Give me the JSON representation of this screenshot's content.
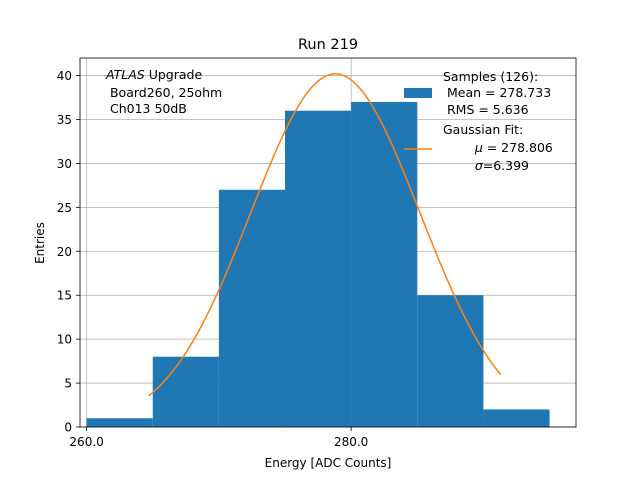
{
  "chart_data": {
    "type": "bar",
    "title": "Run 219",
    "xlabel": "Energy [ADC Counts]",
    "ylabel": "Entries",
    "xlim": [
      259.5,
      297.0
    ],
    "ylim": [
      0,
      42
    ],
    "grid": true,
    "x_ticks": [
      260.0,
      280.0
    ],
    "x_tick_labels": [
      "260.0",
      "280.0"
    ],
    "y_ticks": [
      0,
      5,
      10,
      15,
      20,
      25,
      30,
      35,
      40
    ],
    "y_tick_labels": [
      "0",
      "5",
      "10",
      "15",
      "20",
      "25",
      "30",
      "35",
      "40"
    ],
    "bins": [
      {
        "x0": 260.0,
        "x1": 265.0,
        "count": 1
      },
      {
        "x0": 265.0,
        "x1": 270.0,
        "count": 8
      },
      {
        "x0": 270.0,
        "x1": 275.0,
        "count": 27
      },
      {
        "x0": 275.0,
        "x1": 280.0,
        "count": 36
      },
      {
        "x0": 280.0,
        "x1": 285.0,
        "count": 37
      },
      {
        "x0": 285.0,
        "x1": 290.0,
        "count": 15
      },
      {
        "x0": 290.0,
        "x1": 295.0,
        "count": 2
      }
    ],
    "fit": {
      "name": "Gaussian",
      "mu": 278.806,
      "sigma": 6.399,
      "amplitude": 40.2,
      "x_range": [
        264.7,
        291.3
      ]
    },
    "annotation": {
      "italic": "ATLAS",
      "line1_rest": " Upgrade",
      "line2": " Board260, 25ohm",
      "line3": " Ch013 50dB"
    },
    "legend": {
      "position": "top-right",
      "samples_line1": "Samples (126):",
      "samples_line2": " Mean = 278.733",
      "samples_line3": " RMS = 5.636",
      "fit_line1": "Gaussian Fit:",
      "fit_mu_prefix": " ",
      "fit_mu_symbol": "μ",
      "fit_mu_value": " = 278.806",
      "fit_sigma_prefix": " ",
      "fit_sigma_symbol": "σ",
      "fit_sigma_value": "=6.399"
    },
    "colors": {
      "bars": "#1f77b4",
      "fit": "#ff7f0e",
      "grid": "#b0b0b0",
      "axes": "#000000"
    }
  }
}
